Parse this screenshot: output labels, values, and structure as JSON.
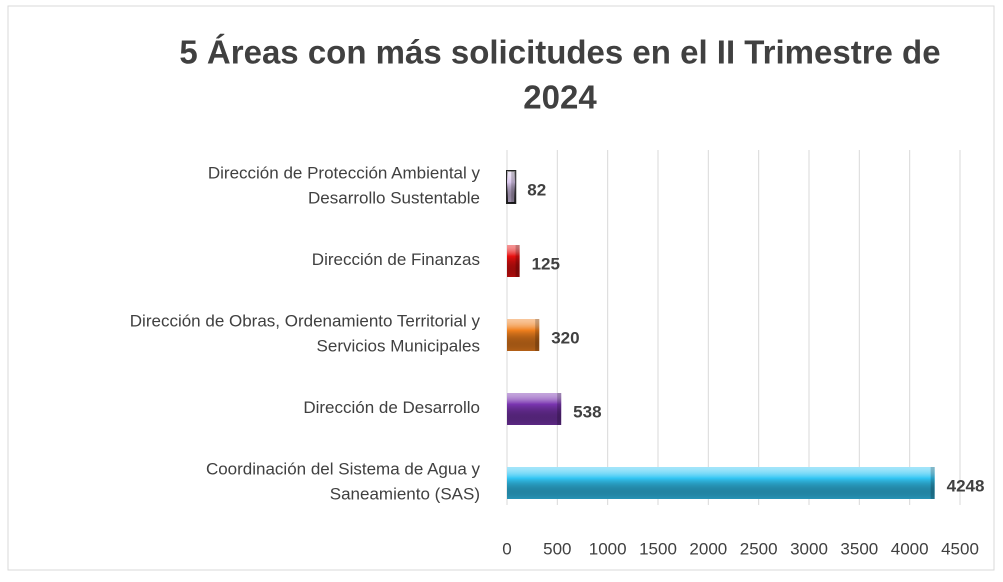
{
  "chart_data": {
    "type": "bar",
    "orientation": "horizontal",
    "title": "5 Áreas con más solicitudes en el II Trimestre de\n2024",
    "categories": [
      "Dirección de Protección Ambiental y\nDesarrollo Sustentable",
      "Dirección de Finanzas",
      "Dirección de Obras, Ordenamiento Territorial y\nServicios Municipales",
      "Dirección de Desarrollo",
      "Coordinación del Sistema de Agua y\nSaneamiento (SAS)"
    ],
    "values": [
      82,
      125,
      320,
      538,
      4248
    ],
    "colors": [
      "#d9c6ec",
      "#e81010",
      "#f0801e",
      "#7a35b0",
      "#33c6f4"
    ],
    "xlim": [
      0,
      4500
    ],
    "xticks": [
      0,
      500,
      1000,
      1500,
      2000,
      2500,
      3000,
      3500,
      4000,
      4500
    ],
    "grid": true
  }
}
